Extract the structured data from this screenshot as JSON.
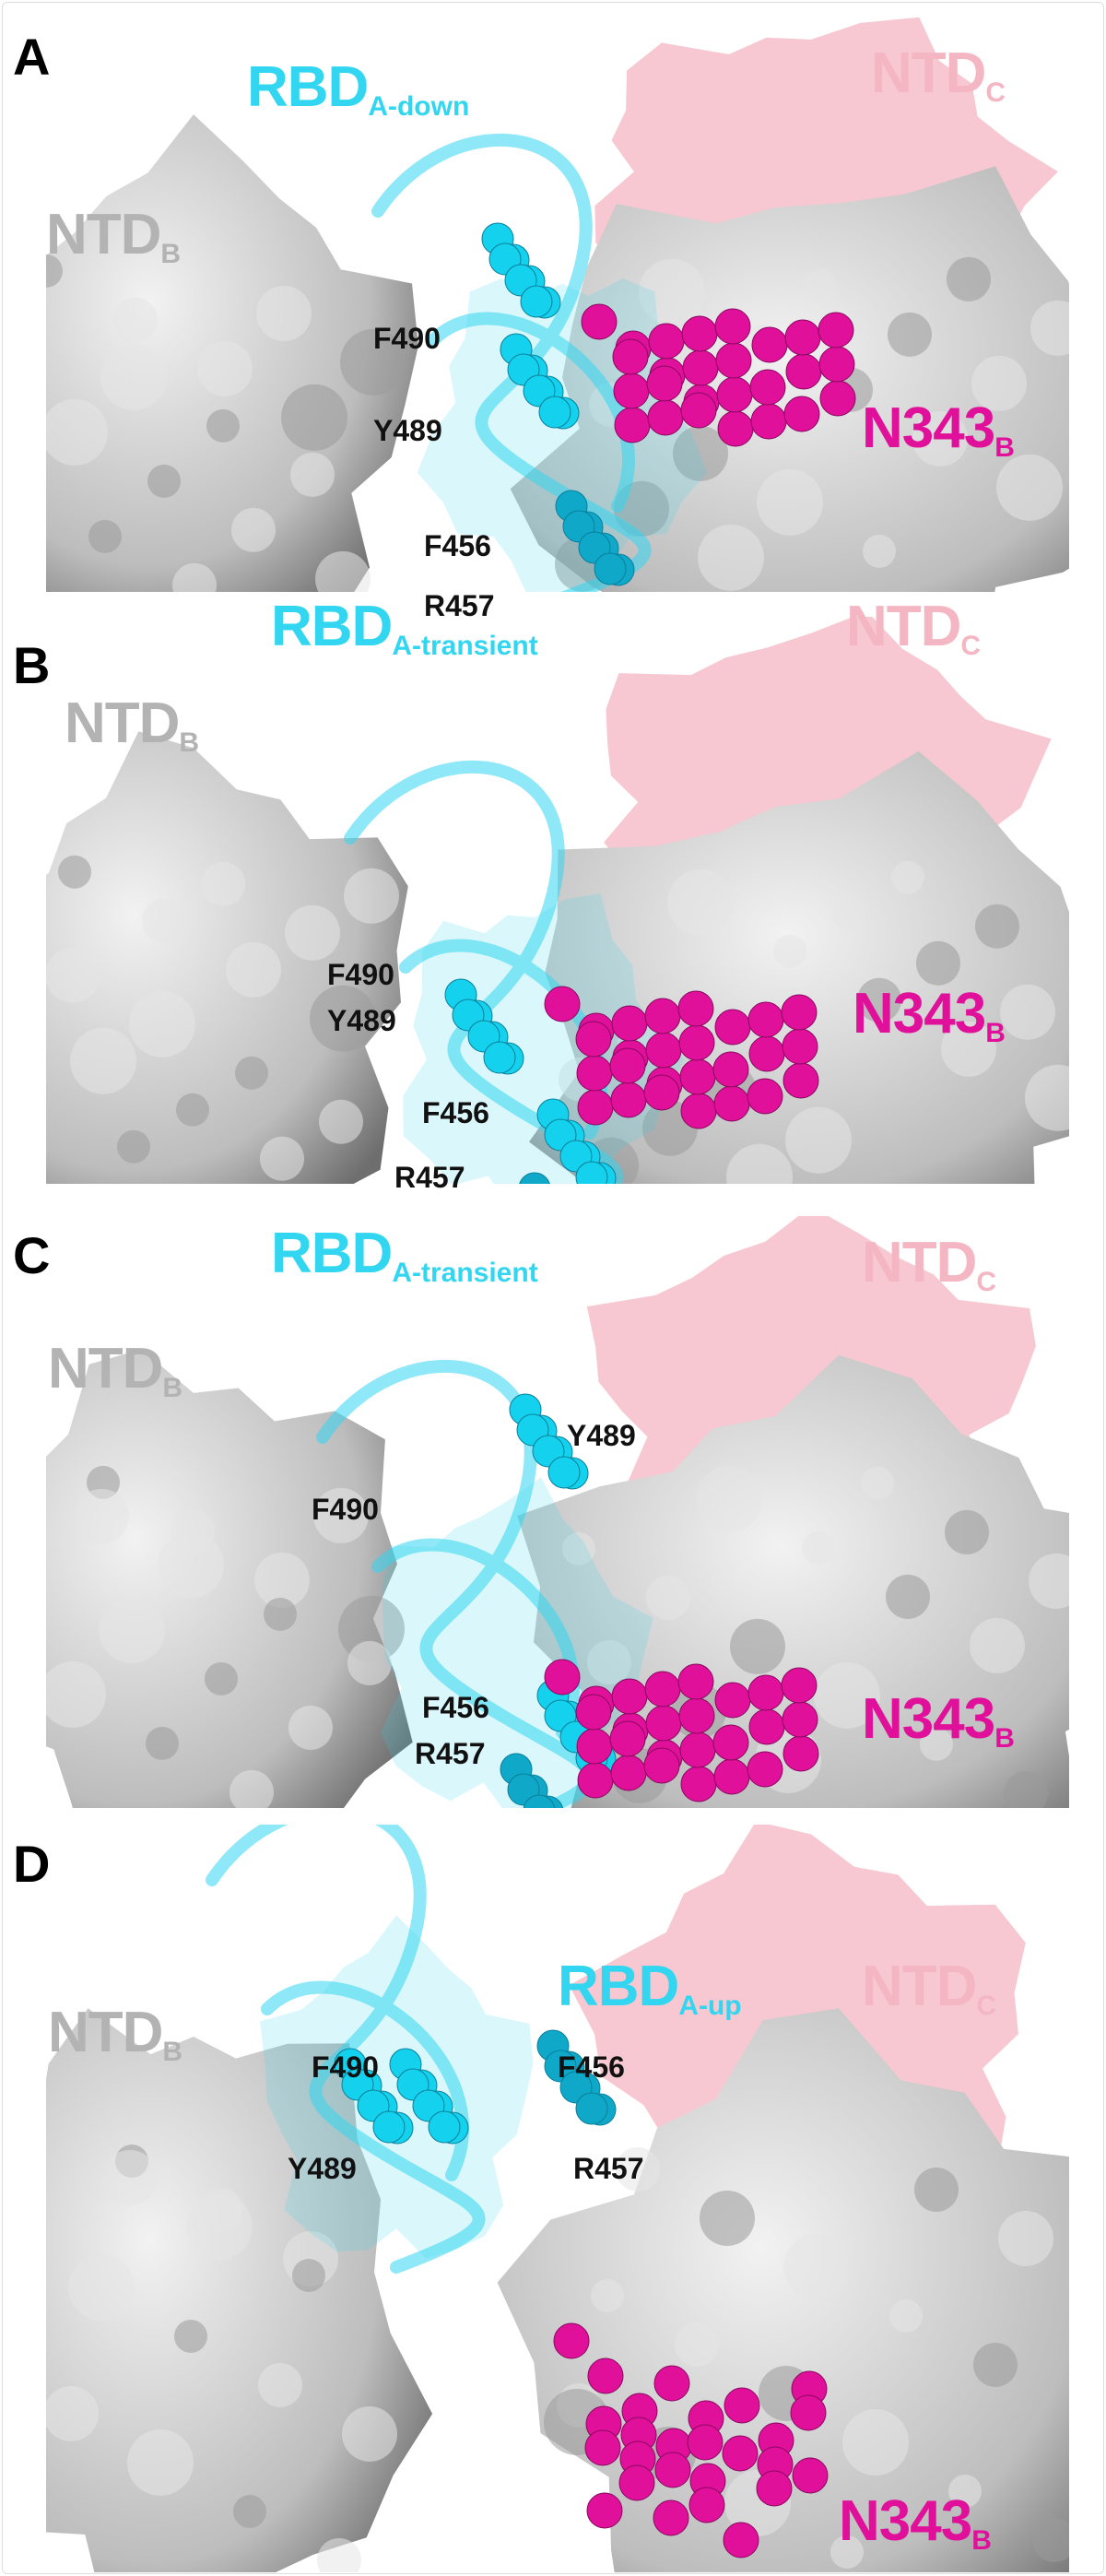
{
  "colors": {
    "surface": "#c8c8c8",
    "ntd_c": "#f4b6c2",
    "rbd": "#33d6f0",
    "glycan": "#e0109a",
    "residue_label": "#111111"
  },
  "panels": [
    {
      "letter": "A",
      "ntd_b": {
        "main": "NTD",
        "sub": "B"
      },
      "rbd": {
        "main": "RBD",
        "sub": "A-down"
      },
      "ntd_c": {
        "main": "NTD",
        "sub": "C"
      },
      "n343": {
        "main": "N343",
        "sub": "B"
      },
      "residues": [
        "F490",
        "Y489",
        "F456",
        "R457"
      ]
    },
    {
      "letter": "B",
      "ntd_b": {
        "main": "NTD",
        "sub": "B"
      },
      "rbd": {
        "main": "RBD",
        "sub": "A-transient"
      },
      "ntd_c": {
        "main": "NTD",
        "sub": "C"
      },
      "n343": {
        "main": "N343",
        "sub": "B"
      },
      "residues": [
        "F490",
        "Y489",
        "F456",
        "R457"
      ]
    },
    {
      "letter": "C",
      "ntd_b": {
        "main": "NTD",
        "sub": "B"
      },
      "rbd": {
        "main": "RBD",
        "sub": "A-transient"
      },
      "ntd_c": {
        "main": "NTD",
        "sub": "C"
      },
      "n343": {
        "main": "N343",
        "sub": "B"
      },
      "residues": [
        "Y489",
        "F490",
        "F456",
        "R457"
      ]
    },
    {
      "letter": "D",
      "ntd_b": {
        "main": "NTD",
        "sub": "B"
      },
      "rbd": {
        "main": "RBD",
        "sub": "A-up"
      },
      "ntd_c": {
        "main": "NTD",
        "sub": "C"
      },
      "n343": {
        "main": "N343",
        "sub": "B"
      },
      "residues": [
        "F490",
        "Y489",
        "F456",
        "R457"
      ]
    }
  ]
}
